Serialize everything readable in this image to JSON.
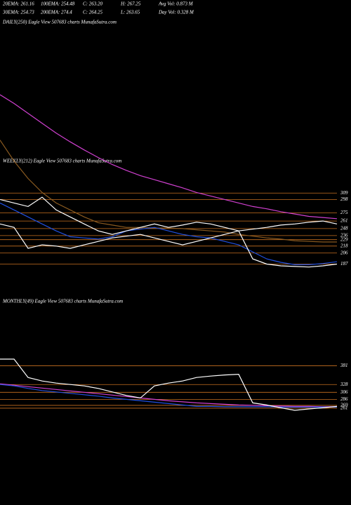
{
  "header": {
    "row1": [
      "20EMA: 261.16",
      "100EMA: 254.48",
      "C: 263.20",
      "H: 267.25",
      "Avg Vol: 0.873 M"
    ],
    "row2": [
      "30EMA: 254.73",
      "200EMA: 274.4",
      "C: 264.25",
      "L: 263.65",
      "Day Vol: 0.328 M"
    ]
  },
  "chart_data": [
    {
      "type": "line",
      "title": "DAILY(250) Eagle  View  507683 charts MunafaSutra.com"
    },
    {
      "type": "line",
      "title": "WEEKLY(212) Eagle  View  507683 charts MunafaSutra.com",
      "ylim": [
        178,
        478
      ],
      "levels": [
        309,
        298,
        275,
        261,
        248,
        236,
        229,
        218,
        206,
        187
      ],
      "level_color": "#c87020",
      "series": [
        {
          "color": "#d040d0",
          "values": [
            478,
            463,
            446,
            429,
            412,
            397,
            383,
            370,
            358,
            348,
            339,
            332,
            325,
            318,
            310,
            304,
            298,
            292,
            286,
            282,
            277,
            273,
            269,
            267,
            265
          ]
        },
        {
          "color": "#8a5a20",
          "values": [
            400,
            364,
            334,
            310,
            292,
            280,
            268,
            258,
            254,
            250,
            250,
            249,
            249,
            248,
            246,
            244,
            242,
            238,
            235,
            232,
            230,
            227,
            226,
            225,
            225
          ]
        },
        {
          "color": "#2050e0",
          "values": [
            292,
            280,
            268,
            256,
            244,
            234,
            232,
            230,
            234,
            244,
            247,
            250,
            244,
            238,
            234,
            232,
            226,
            220,
            208,
            196,
            190,
            186,
            186,
            188,
            191
          ]
        },
        {
          "color": "#ffffff",
          "values": [
            298,
            292,
            286,
            302,
            280,
            268,
            256,
            244,
            238,
            244,
            250,
            256,
            250,
            254,
            259,
            256,
            250,
            244,
            247,
            250,
            254,
            256,
            259,
            261,
            256
          ]
        },
        {
          "color": "#ffffff",
          "values": [
            256,
            250,
            214,
            220,
            218,
            214,
            220,
            226,
            232,
            235,
            238,
            232,
            226,
            220,
            226,
            232,
            238,
            244,
            196,
            187,
            184,
            183,
            182,
            184,
            187
          ]
        }
      ]
    },
    {
      "type": "line",
      "title": "MONTHLY(49) Eagle  View  507683 charts MunafaSutra.com",
      "ylim": [
        245,
        400
      ],
      "levels": [
        381,
        328,
        306,
        286,
        269,
        261
      ],
      "level_color": "#c87020",
      "series": [
        {
          "color": "#d040d0",
          "values": [
            330,
            326,
            322,
            318,
            314,
            310,
            306,
            302,
            298,
            294,
            290,
            286,
            282,
            279,
            276,
            274,
            272,
            270,
            269,
            268,
            267,
            266,
            266,
            265,
            265
          ]
        },
        {
          "color": "#2050e0",
          "values": [
            328,
            324,
            317,
            311,
            307,
            303,
            299,
            295,
            290,
            286,
            282,
            278,
            274,
            270,
            266,
            266,
            265,
            265,
            265,
            265,
            264,
            264,
            264,
            264,
            264
          ]
        },
        {
          "color": "#ffffff",
          "values": [
            400,
            400,
            348,
            338,
            332,
            328,
            324,
            317,
            307,
            297,
            290,
            324,
            332,
            338,
            348,
            352,
            355,
            357,
            276,
            270,
            262,
            255,
            259,
            262,
            266
          ]
        }
      ]
    }
  ]
}
